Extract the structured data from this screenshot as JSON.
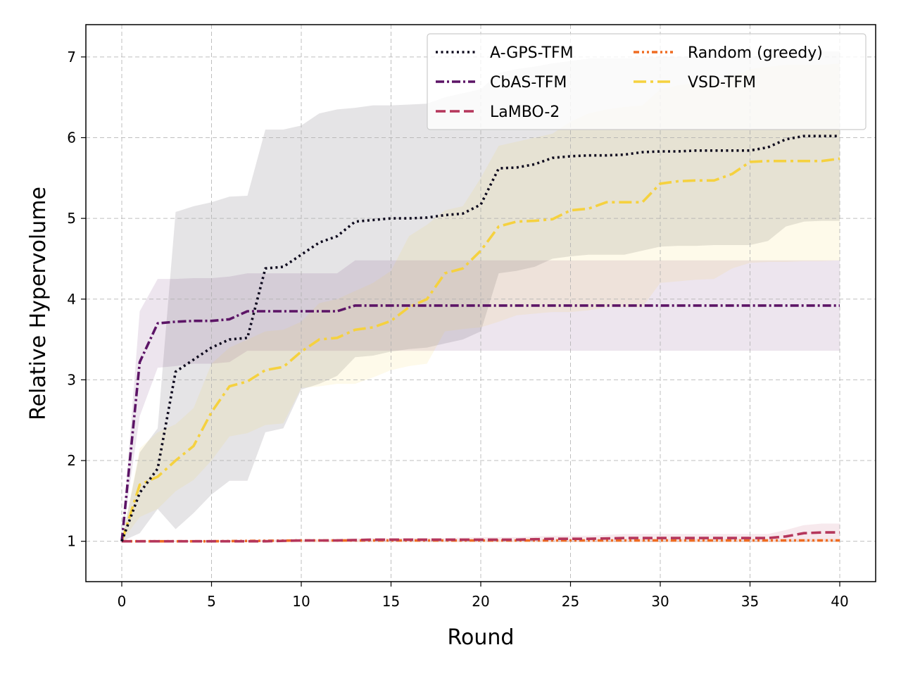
{
  "chart_data": {
    "type": "line",
    "title": "",
    "xlabel": "Round",
    "ylabel": "Relative Hypervolume",
    "xlim": [
      -2,
      42
    ],
    "ylim": [
      0.5,
      7.4
    ],
    "xticks": [
      0,
      5,
      10,
      15,
      20,
      25,
      30,
      35,
      40
    ],
    "yticks": [
      1,
      2,
      3,
      4,
      5,
      6,
      7
    ],
    "grid": true,
    "legend_position": "top-right",
    "series": [
      {
        "name": "A-GPS-TFM",
        "color": "#0e0a1e",
        "dash": "dotted",
        "x": [
          0,
          1,
          2,
          3,
          4,
          5,
          6,
          7,
          8,
          9,
          10,
          11,
          12,
          13,
          14,
          15,
          16,
          17,
          18,
          19,
          20,
          21,
          22,
          23,
          24,
          25,
          26,
          27,
          28,
          29,
          30,
          31,
          32,
          33,
          34,
          35,
          36,
          37,
          38,
          39,
          40
        ],
        "y": [
          1.0,
          1.6,
          1.9,
          3.1,
          3.25,
          3.4,
          3.5,
          3.52,
          4.38,
          4.4,
          4.55,
          4.7,
          4.78,
          4.96,
          4.98,
          5.0,
          5.0,
          5.01,
          5.04,
          5.06,
          5.17,
          5.62,
          5.63,
          5.67,
          5.75,
          5.77,
          5.78,
          5.78,
          5.79,
          5.82,
          5.83,
          5.83,
          5.84,
          5.84,
          5.84,
          5.84,
          5.88,
          5.98,
          6.02,
          6.02,
          6.02
        ],
        "lower": [
          1.0,
          1.1,
          1.4,
          1.15,
          1.35,
          1.58,
          1.75,
          1.75,
          2.35,
          2.4,
          2.88,
          2.95,
          3.05,
          3.28,
          3.3,
          3.35,
          3.38,
          3.4,
          3.45,
          3.5,
          3.6,
          4.32,
          4.35,
          4.4,
          4.5,
          4.53,
          4.55,
          4.55,
          4.55,
          4.6,
          4.65,
          4.66,
          4.66,
          4.67,
          4.67,
          4.67,
          4.72,
          4.9,
          4.96,
          4.97,
          4.97
        ],
        "upper": [
          1.0,
          2.1,
          2.4,
          5.08,
          5.15,
          5.2,
          5.27,
          5.28,
          6.1,
          6.1,
          6.15,
          6.3,
          6.35,
          6.37,
          6.4,
          6.4,
          6.41,
          6.42,
          6.5,
          6.55,
          6.6,
          6.8,
          6.85,
          6.88,
          6.92,
          6.95,
          6.98,
          6.98,
          6.98,
          6.99,
          7.0,
          7.0,
          7.0,
          7.0,
          7.0,
          7.0,
          7.02,
          7.05,
          7.06,
          7.07,
          7.07
        ]
      },
      {
        "name": "CbAS-TFM",
        "color": "#5c1466",
        "dash": "dashdot",
        "x": [
          0,
          1,
          2,
          3,
          4,
          5,
          6,
          7,
          8,
          9,
          10,
          11,
          12,
          13,
          14,
          15,
          16,
          17,
          18,
          19,
          20,
          21,
          22,
          23,
          24,
          25,
          26,
          27,
          28,
          29,
          30,
          31,
          32,
          33,
          34,
          35,
          36,
          37,
          38,
          39,
          40
        ],
        "y": [
          1.0,
          3.22,
          3.7,
          3.72,
          3.73,
          3.73,
          3.75,
          3.85,
          3.85,
          3.85,
          3.85,
          3.85,
          3.85,
          3.92,
          3.92,
          3.92,
          3.92,
          3.92,
          3.92,
          3.92,
          3.92,
          3.92,
          3.92,
          3.92,
          3.92,
          3.92,
          3.92,
          3.92,
          3.92,
          3.92,
          3.92,
          3.92,
          3.92,
          3.92,
          3.92,
          3.92,
          3.92,
          3.92,
          3.92,
          3.92,
          3.92
        ],
        "lower": [
          1.0,
          2.55,
          3.15,
          3.17,
          3.2,
          3.2,
          3.22,
          3.36,
          3.36,
          3.36,
          3.36,
          3.36,
          3.36,
          3.36,
          3.36,
          3.36,
          3.36,
          3.36,
          3.36,
          3.36,
          3.36,
          3.36,
          3.36,
          3.36,
          3.36,
          3.36,
          3.36,
          3.36,
          3.36,
          3.36,
          3.36,
          3.36,
          3.36,
          3.36,
          3.36,
          3.36,
          3.36,
          3.36,
          3.36,
          3.36,
          3.36
        ],
        "upper": [
          1.0,
          3.85,
          4.25,
          4.25,
          4.26,
          4.26,
          4.28,
          4.32,
          4.32,
          4.32,
          4.32,
          4.32,
          4.32,
          4.48,
          4.48,
          4.48,
          4.48,
          4.48,
          4.48,
          4.48,
          4.48,
          4.48,
          4.48,
          4.48,
          4.48,
          4.48,
          4.48,
          4.48,
          4.48,
          4.48,
          4.48,
          4.48,
          4.48,
          4.48,
          4.48,
          4.48,
          4.48,
          4.48,
          4.48,
          4.48,
          4.48
        ]
      },
      {
        "name": "LaMBO-2",
        "color": "#b5365b",
        "dash": "dashed",
        "x": [
          0,
          2,
          5,
          8,
          10,
          12,
          14,
          16,
          18,
          20,
          22,
          24,
          26,
          28,
          30,
          32,
          34,
          36,
          37,
          38,
          39,
          40
        ],
        "y": [
          1.0,
          1.0,
          1.0,
          1.0,
          1.01,
          1.01,
          1.02,
          1.02,
          1.02,
          1.02,
          1.02,
          1.03,
          1.03,
          1.04,
          1.04,
          1.04,
          1.04,
          1.04,
          1.06,
          1.1,
          1.11,
          1.11
        ],
        "lower": [
          1.0,
          0.99,
          0.99,
          0.99,
          0.99,
          0.99,
          0.99,
          0.99,
          0.99,
          0.99,
          0.99,
          0.99,
          0.99,
          0.99,
          0.99,
          0.99,
          0.99,
          0.99,
          0.99,
          1.0,
          1.0,
          1.0
        ],
        "upper": [
          1.0,
          1.01,
          1.01,
          1.02,
          1.02,
          1.03,
          1.04,
          1.04,
          1.04,
          1.05,
          1.05,
          1.07,
          1.07,
          1.09,
          1.09,
          1.09,
          1.09,
          1.09,
          1.14,
          1.2,
          1.22,
          1.22
        ]
      },
      {
        "name": "Random (greedy)",
        "color": "#ef6c22",
        "dash": "dashdotdot",
        "x": [
          0,
          5,
          10,
          15,
          20,
          25,
          30,
          35,
          40
        ],
        "y": [
          1.0,
          1.0,
          1.01,
          1.01,
          1.01,
          1.01,
          1.01,
          1.01,
          1.01
        ],
        "lower": [
          1.0,
          0.99,
          0.99,
          0.99,
          0.99,
          0.99,
          0.99,
          0.99,
          0.99
        ],
        "upper": [
          1.0,
          1.01,
          1.02,
          1.02,
          1.02,
          1.02,
          1.03,
          1.03,
          1.03
        ]
      },
      {
        "name": "VSD-TFM",
        "color": "#f5d13f",
        "dash": "longdashdot",
        "x": [
          0,
          1,
          2,
          3,
          4,
          5,
          6,
          7,
          8,
          9,
          10,
          11,
          12,
          13,
          14,
          15,
          16,
          17,
          18,
          19,
          20,
          21,
          22,
          23,
          24,
          25,
          26,
          27,
          28,
          29,
          30,
          31,
          32,
          33,
          34,
          35,
          36,
          37,
          38,
          39,
          40
        ],
        "y": [
          1.0,
          1.7,
          1.8,
          2.0,
          2.18,
          2.6,
          2.92,
          2.98,
          3.12,
          3.16,
          3.35,
          3.5,
          3.52,
          3.62,
          3.65,
          3.73,
          3.9,
          4.0,
          4.32,
          4.38,
          4.6,
          4.9,
          4.96,
          4.97,
          4.99,
          5.1,
          5.12,
          5.2,
          5.2,
          5.2,
          5.43,
          5.46,
          5.47,
          5.47,
          5.55,
          5.7,
          5.71,
          5.71,
          5.71,
          5.71,
          5.74
        ],
        "lower": [
          1.0,
          1.3,
          1.4,
          1.62,
          1.76,
          2.0,
          2.3,
          2.34,
          2.44,
          2.46,
          2.9,
          2.92,
          2.95,
          2.95,
          3.03,
          3.12,
          3.17,
          3.2,
          3.6,
          3.63,
          3.65,
          3.72,
          3.8,
          3.82,
          3.84,
          3.84,
          3.86,
          3.9,
          3.9,
          3.9,
          4.2,
          4.22,
          4.24,
          4.25,
          4.38,
          4.45,
          4.46,
          4.46,
          4.47,
          4.47,
          4.48
        ],
        "upper": [
          1.0,
          2.15,
          2.35,
          2.45,
          2.65,
          3.2,
          3.4,
          3.5,
          3.6,
          3.62,
          3.72,
          3.95,
          4.0,
          4.1,
          4.2,
          4.35,
          4.78,
          4.92,
          5.1,
          5.15,
          5.5,
          5.9,
          5.95,
          6.0,
          6.05,
          6.2,
          6.3,
          6.35,
          6.38,
          6.4,
          6.6,
          6.65,
          6.68,
          6.7,
          6.75,
          6.85,
          6.88,
          6.9,
          6.9,
          6.9,
          6.92
        ]
      }
    ]
  }
}
